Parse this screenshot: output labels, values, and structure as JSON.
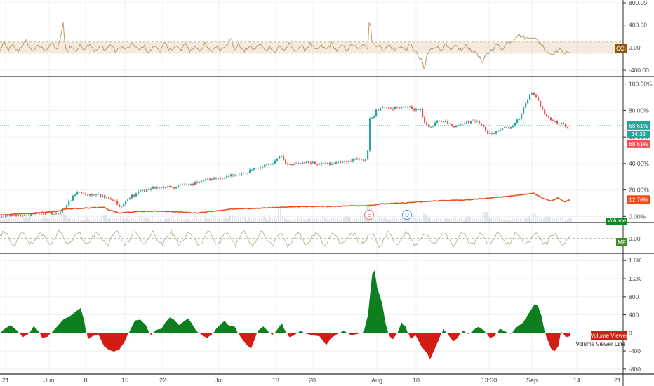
{
  "colors": {
    "up": "#26a69a",
    "down": "#ef5350",
    "compare": "#e8501a",
    "cci_line": "#b89a72",
    "cci_band": "#ecdcc6",
    "mf_line": "#b9b493",
    "vv_up": "#0e7f1e",
    "vv_down": "#d21c14",
    "price_tag": "#26a69a",
    "price_tag2": "#ef5350",
    "compare_tag": "#f24a17",
    "cci_tag": "#8c5a12",
    "mf_tag": "#3e8e1d",
    "vol_tag": "#0e8a1e",
    "vv_tag": "#d21c14"
  },
  "chart_data": [
    {
      "type": "line",
      "panel": "cci",
      "title": "CCI",
      "y_ticks": [
        "800.00",
        "400.00",
        "0.00",
        "-400.00"
      ],
      "ylim": [
        -450,
        820
      ],
      "band": [
        -100,
        100
      ],
      "tag": "CCI",
      "anchors": [
        [
          0,
          -60
        ],
        [
          5,
          90
        ],
        [
          12,
          -40
        ],
        [
          18,
          40
        ],
        [
          25,
          -70
        ],
        [
          30,
          20
        ],
        [
          38,
          120
        ],
        [
          45,
          -60
        ],
        [
          55,
          30
        ],
        [
          65,
          -40
        ],
        [
          75,
          80
        ],
        [
          82,
          -50
        ],
        [
          90,
          420
        ],
        [
          92,
          100
        ],
        [
          96,
          -80
        ],
        [
          100,
          20
        ],
        [
          108,
          -60
        ],
        [
          115,
          40
        ],
        [
          120,
          -20
        ],
        [
          128,
          80
        ],
        [
          135,
          -70
        ],
        [
          145,
          30
        ],
        [
          150,
          -40
        ],
        [
          158,
          60
        ],
        [
          165,
          -80
        ],
        [
          172,
          20
        ],
        [
          180,
          -30
        ],
        [
          190,
          70
        ],
        [
          198,
          -60
        ],
        [
          205,
          40
        ],
        [
          212,
          -90
        ],
        [
          220,
          30
        ],
        [
          228,
          -40
        ],
        [
          235,
          80
        ],
        [
          240,
          -60
        ],
        [
          250,
          30
        ],
        [
          258,
          -50
        ],
        [
          265,
          90
        ],
        [
          270,
          -70
        ],
        [
          278,
          20
        ],
        [
          285,
          -40
        ],
        [
          292,
          60
        ],
        [
          300,
          -80
        ],
        [
          308,
          30
        ],
        [
          315,
          -40
        ],
        [
          322,
          60
        ],
        [
          330,
          150
        ],
        [
          333,
          -50
        ],
        [
          340,
          60
        ],
        [
          348,
          -70
        ],
        [
          355,
          30
        ],
        [
          362,
          -40
        ],
        [
          370,
          70
        ],
        [
          378,
          -60
        ],
        [
          385,
          30
        ],
        [
          392,
          -90
        ],
        [
          398,
          30
        ],
        [
          405,
          -50
        ],
        [
          412,
          60
        ],
        [
          420,
          -70
        ],
        [
          428,
          30
        ],
        [
          435,
          -40
        ],
        [
          442,
          70
        ],
        [
          450,
          -60
        ],
        [
          458,
          30
        ],
        [
          465,
          -40
        ],
        [
          472,
          80
        ],
        [
          480,
          -50
        ],
        [
          488,
          30
        ],
        [
          495,
          -40
        ],
        [
          502,
          60
        ],
        [
          510,
          -30
        ],
        [
          518,
          40
        ],
        [
          524,
          0
        ],
        [
          527,
          700
        ],
        [
          529,
          150
        ],
        [
          533,
          60
        ],
        [
          540,
          30
        ],
        [
          548,
          -40
        ],
        [
          555,
          50
        ],
        [
          562,
          -60
        ],
        [
          570,
          30
        ],
        [
          578,
          -40
        ],
        [
          585,
          60
        ],
        [
          592,
          -70
        ],
        [
          598,
          -200
        ],
        [
          602,
          -250
        ],
        [
          605,
          -430
        ],
        [
          608,
          -150
        ],
        [
          612,
          -60
        ],
        [
          620,
          30
        ],
        [
          628,
          -40
        ],
        [
          635,
          50
        ],
        [
          642,
          -60
        ],
        [
          650,
          30
        ],
        [
          658,
          -50
        ],
        [
          665,
          40
        ],
        [
          672,
          -60
        ],
        [
          680,
          -100
        ],
        [
          688,
          -280
        ],
        [
          692,
          -150
        ],
        [
          700,
          -50
        ],
        [
          708,
          60
        ],
        [
          715,
          -30
        ],
        [
          722,
          80
        ],
        [
          730,
          120
        ],
        [
          738,
          230
        ],
        [
          745,
          190
        ],
        [
          752,
          160
        ],
        [
          758,
          200
        ],
        [
          765,
          130
        ],
        [
          772,
          60
        ],
        [
          778,
          -40
        ],
        [
          785,
          -120
        ],
        [
          790,
          -80
        ],
        [
          796,
          -40
        ],
        [
          803,
          -70
        ],
        [
          810,
          -110
        ],
        [
          813,
          -60
        ]
      ]
    },
    {
      "type": "candlestick",
      "panel": "price",
      "y_ticks": [
        "100.00%",
        "80.00%",
        "60.00%",
        "40.00%",
        "20.00%",
        "0.00%"
      ],
      "ylim": [
        -3,
        103
      ],
      "path": [
        [
          0,
          0
        ],
        [
          30,
          1
        ],
        [
          60,
          2
        ],
        [
          85,
          3
        ],
        [
          95,
          10
        ],
        [
          110,
          19
        ],
        [
          120,
          16
        ],
        [
          135,
          17
        ],
        [
          150,
          14
        ],
        [
          162,
          12
        ],
        [
          168,
          7
        ],
        [
          175,
          9
        ],
        [
          185,
          15
        ],
        [
          200,
          19
        ],
        [
          215,
          21
        ],
        [
          230,
          22
        ],
        [
          245,
          22
        ],
        [
          260,
          24
        ],
        [
          275,
          25
        ],
        [
          290,
          27
        ],
        [
          310,
          29
        ],
        [
          330,
          31
        ],
        [
          350,
          33
        ],
        [
          362,
          36
        ],
        [
          375,
          38
        ],
        [
          388,
          40
        ],
        [
          395,
          44
        ],
        [
          400,
          46
        ],
        [
          405,
          40
        ],
        [
          420,
          39
        ],
        [
          440,
          41
        ],
        [
          455,
          40
        ],
        [
          470,
          40
        ],
        [
          490,
          42
        ],
        [
          510,
          43
        ],
        [
          522,
          43
        ],
        [
          526,
          73
        ],
        [
          530,
          75
        ],
        [
          535,
          80
        ],
        [
          545,
          82
        ],
        [
          560,
          82
        ],
        [
          575,
          83
        ],
        [
          590,
          81
        ],
        [
          598,
          80
        ],
        [
          605,
          70
        ],
        [
          612,
          66
        ],
        [
          620,
          72
        ],
        [
          635,
          72
        ],
        [
          645,
          66
        ],
        [
          660,
          71
        ],
        [
          675,
          72
        ],
        [
          685,
          70
        ],
        [
          692,
          63
        ],
        [
          700,
          62
        ],
        [
          715,
          66
        ],
        [
          730,
          68
        ],
        [
          740,
          75
        ],
        [
          748,
          85
        ],
        [
          755,
          93
        ],
        [
          760,
          92
        ],
        [
          768,
          85
        ],
        [
          775,
          78
        ],
        [
          782,
          73
        ],
        [
          792,
          71
        ],
        [
          800,
          70
        ],
        [
          807,
          67
        ],
        [
          813,
          68
        ]
      ],
      "last_value_tag": "68.61%",
      "timer_tag": "14:32",
      "last_value_tag2": "68.61%",
      "events": [
        "E",
        "D"
      ]
    },
    {
      "type": "line",
      "panel": "price",
      "series": "compare",
      "points": [
        [
          0,
          1
        ],
        [
          30,
          2
        ],
        [
          60,
          3
        ],
        [
          85,
          4
        ],
        [
          90,
          5.5
        ],
        [
          110,
          6
        ],
        [
          130,
          6.5
        ],
        [
          148,
          6.8
        ],
        [
          155,
          5
        ],
        [
          170,
          2.5
        ],
        [
          185,
          3.2
        ],
        [
          200,
          3.8
        ],
        [
          230,
          4
        ],
        [
          260,
          3.2
        ],
        [
          280,
          2.6
        ],
        [
          300,
          3.8
        ],
        [
          330,
          5.5
        ],
        [
          360,
          6
        ],
        [
          385,
          6.5
        ],
        [
          410,
          7.2
        ],
        [
          440,
          7.5
        ],
        [
          470,
          7.6
        ],
        [
          500,
          8
        ],
        [
          520,
          8.2
        ],
        [
          530,
          8.5
        ],
        [
          545,
          9.5
        ],
        [
          570,
          10
        ],
        [
          600,
          11
        ],
        [
          630,
          12
        ],
        [
          660,
          12.3
        ],
        [
          690,
          13.5
        ],
        [
          720,
          15
        ],
        [
          745,
          16.5
        ],
        [
          760,
          17.5
        ],
        [
          766,
          16
        ],
        [
          775,
          13.5
        ],
        [
          785,
          11.5
        ],
        [
          795,
          14
        ],
        [
          805,
          11
        ],
        [
          813,
          12.76
        ]
      ],
      "last_value_tag": "12.76%"
    },
    {
      "type": "bar",
      "panel": "volume",
      "tag": "Volume",
      "spikes": [
        [
          90,
          0.45
        ],
        [
          148,
          0.5
        ],
        [
          200,
          0.35
        ],
        [
          275,
          0.3
        ],
        [
          330,
          0.4
        ],
        [
          398,
          0.9
        ],
        [
          525,
          1.0
        ],
        [
          605,
          0.5
        ],
        [
          690,
          0.55
        ],
        [
          760,
          0.6
        ]
      ]
    },
    {
      "type": "line",
      "panel": "mf",
      "tag": "MF",
      "y_ticks": [
        "0.00"
      ],
      "ylim": [
        -1,
        1
      ]
    },
    {
      "type": "area",
      "panel": "volume_viewer",
      "y_ticks": [
        "1.6K",
        "1.2K",
        "800",
        "400",
        "0",
        "-400",
        "-800"
      ],
      "ylim": [
        -880,
        1650
      ],
      "anchors": [
        [
          0,
          0
        ],
        [
          5,
          80
        ],
        [
          15,
          180
        ],
        [
          25,
          50
        ],
        [
          32,
          -100
        ],
        [
          40,
          -40
        ],
        [
          48,
          160
        ],
        [
          55,
          40
        ],
        [
          60,
          -120
        ],
        [
          68,
          -90
        ],
        [
          75,
          40
        ],
        [
          82,
          160
        ],
        [
          90,
          300
        ],
        [
          100,
          380
        ],
        [
          108,
          480
        ],
        [
          115,
          560
        ],
        [
          120,
          300
        ],
        [
          125,
          -150
        ],
        [
          132,
          -80
        ],
        [
          140,
          -40
        ],
        [
          148,
          -300
        ],
        [
          155,
          -380
        ],
        [
          162,
          -420
        ],
        [
          170,
          -380
        ],
        [
          178,
          -200
        ],
        [
          185,
          60
        ],
        [
          192,
          280
        ],
        [
          200,
          300
        ],
        [
          208,
          180
        ],
        [
          215,
          -60
        ],
        [
          222,
          70
        ],
        [
          230,
          100
        ],
        [
          236,
          250
        ],
        [
          242,
          350
        ],
        [
          248,
          300
        ],
        [
          255,
          180
        ],
        [
          262,
          260
        ],
        [
          268,
          330
        ],
        [
          272,
          250
        ],
        [
          280,
          50
        ],
        [
          288,
          -60
        ],
        [
          295,
          -120
        ],
        [
          302,
          -40
        ],
        [
          308,
          100
        ],
        [
          315,
          200
        ],
        [
          320,
          280
        ],
        [
          325,
          180
        ],
        [
          335,
          140
        ],
        [
          342,
          -80
        ],
        [
          350,
          -250
        ],
        [
          358,
          -360
        ],
        [
          362,
          -200
        ],
        [
          368,
          60
        ],
        [
          375,
          150
        ],
        [
          380,
          80
        ],
        [
          388,
          -60
        ],
        [
          395,
          80
        ],
        [
          402,
          230
        ],
        [
          405,
          100
        ],
        [
          412,
          -100
        ],
        [
          420,
          -60
        ],
        [
          428,
          60
        ],
        [
          436,
          -20
        ],
        [
          445,
          -60
        ],
        [
          455,
          -80
        ],
        [
          465,
          -280
        ],
        [
          472,
          -120
        ],
        [
          480,
          -40
        ],
        [
          490,
          60
        ],
        [
          500,
          -60
        ],
        [
          510,
          -30
        ],
        [
          518,
          20
        ],
        [
          524,
          400
        ],
        [
          530,
          1300
        ],
        [
          534,
          1400
        ],
        [
          538,
          1000
        ],
        [
          545,
          650
        ],
        [
          550,
          200
        ],
        [
          555,
          -80
        ],
        [
          560,
          -150
        ],
        [
          565,
          -40
        ],
        [
          572,
          240
        ],
        [
          578,
          150
        ],
        [
          585,
          -150
        ],
        [
          592,
          -60
        ],
        [
          600,
          -300
        ],
        [
          608,
          -450
        ],
        [
          613,
          -600
        ],
        [
          618,
          -420
        ],
        [
          625,
          -180
        ],
        [
          632,
          100
        ],
        [
          640,
          -80
        ],
        [
          646,
          -200
        ],
        [
          652,
          -120
        ],
        [
          660,
          60
        ],
        [
          668,
          -40
        ],
        [
          675,
          80
        ],
        [
          682,
          140
        ],
        [
          690,
          60
        ],
        [
          698,
          -120
        ],
        [
          705,
          -80
        ],
        [
          712,
          100
        ],
        [
          720,
          40
        ],
        [
          728,
          -30
        ],
        [
          735,
          120
        ],
        [
          745,
          230
        ],
        [
          755,
          480
        ],
        [
          762,
          650
        ],
        [
          767,
          600
        ],
        [
          772,
          380
        ],
        [
          778,
          -80
        ],
        [
          785,
          -350
        ],
        [
          790,
          -420
        ],
        [
          796,
          -300
        ],
        [
          800,
          40
        ],
        [
          806,
          -100
        ],
        [
          813,
          -80
        ]
      ],
      "legend": [
        "Volume Viewer",
        "Volume Viewer Line"
      ]
    }
  ],
  "x_axis": {
    "ticks": [
      "21",
      "Jun",
      "8",
      "15",
      "22",
      "Jul",
      "13",
      "20",
      "Aug",
      "10",
      "13:30",
      "Sep",
      "14",
      "21"
    ]
  }
}
